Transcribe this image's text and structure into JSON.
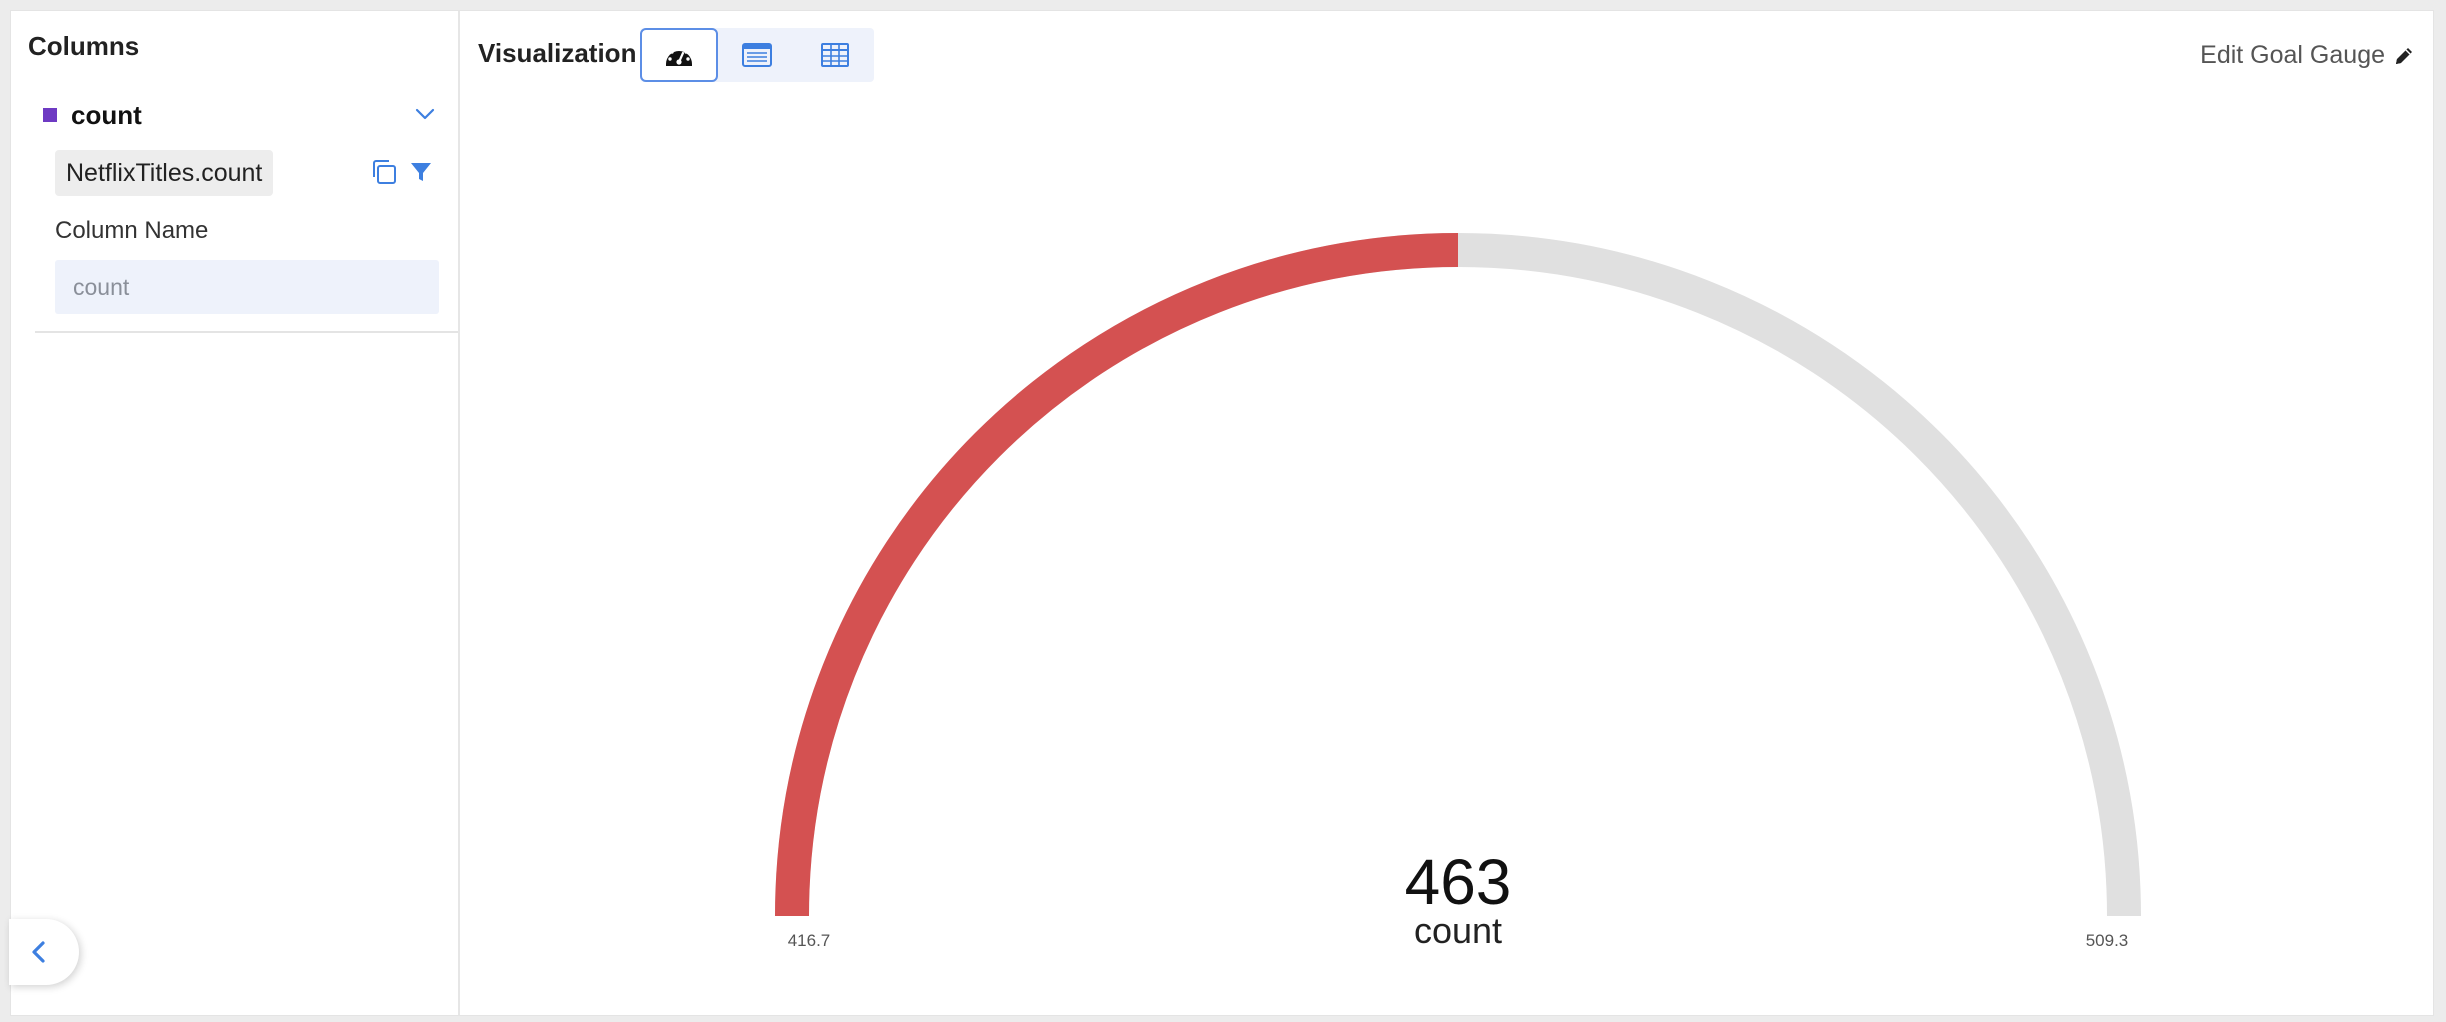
{
  "columns_panel": {
    "title": "Columns",
    "column": {
      "name": "count",
      "swatch_color": "#6e3ac3",
      "source": "NetflixTitles.count",
      "field_label": "Column Name",
      "field_value": "",
      "field_placeholder": "count"
    }
  },
  "visualization": {
    "label": "Visualization",
    "types": [
      {
        "name": "goal-gauge",
        "icon": "speedometer-icon",
        "active": true
      },
      {
        "name": "list",
        "icon": "list-card-icon",
        "active": false
      },
      {
        "name": "table",
        "icon": "table-grid-icon",
        "active": false
      }
    ],
    "edit_label": "Edit Goal Gauge"
  },
  "gauge": {
    "value": 463,
    "value_text": "463",
    "label": "count",
    "min": 416.7,
    "max": 509.3,
    "min_text": "416.7",
    "max_text": "509.3",
    "fill_color": "#d45151",
    "track_color": "#e0e0e0"
  },
  "colors": {
    "accent": "#3d7fe0"
  }
}
